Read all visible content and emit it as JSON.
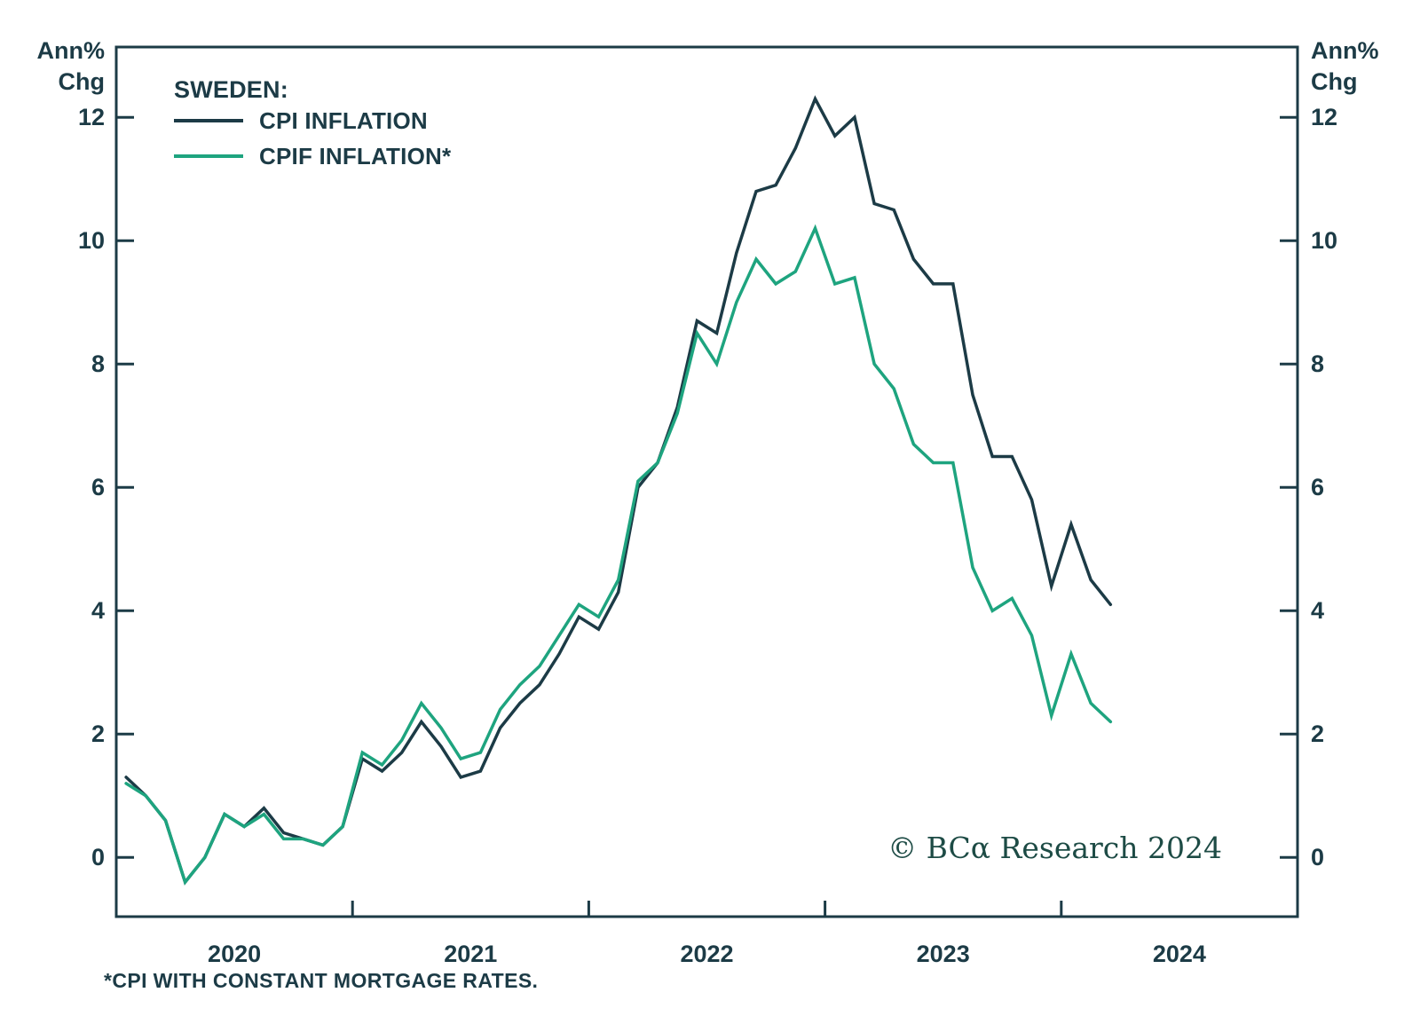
{
  "colors": {
    "text": "#1c3b46",
    "frame": "#1c3b46",
    "cpi_line": "#1c3b46",
    "cpif_line": "#1ea47f",
    "copyright": "#1d4b45",
    "background": "#ffffff"
  },
  "chart_data": {
    "type": "line",
    "title": "SWEDEN:",
    "y_axis_title_line1": "Ann%",
    "y_axis_title_line2": "Chg",
    "y_ticks": [
      0,
      2,
      4,
      6,
      8,
      10,
      12
    ],
    "ylim": [
      -0.96,
      13.14
    ],
    "grid": false,
    "legend_position": "top-left",
    "x_year_labels": [
      "2020",
      "2021",
      "2022",
      "2023",
      "2024"
    ],
    "x_total_months": 60,
    "x": [
      "2020-01",
      "2020-02",
      "2020-03",
      "2020-04",
      "2020-05",
      "2020-06",
      "2020-07",
      "2020-08",
      "2020-09",
      "2020-10",
      "2020-11",
      "2020-12",
      "2021-01",
      "2021-02",
      "2021-03",
      "2021-04",
      "2021-05",
      "2021-06",
      "2021-07",
      "2021-08",
      "2021-09",
      "2021-10",
      "2021-11",
      "2021-12",
      "2022-01",
      "2022-02",
      "2022-03",
      "2022-04",
      "2022-05",
      "2022-06",
      "2022-07",
      "2022-08",
      "2022-09",
      "2022-10",
      "2022-11",
      "2022-12",
      "2023-01",
      "2023-02",
      "2023-03",
      "2023-04",
      "2023-05",
      "2023-06",
      "2023-07",
      "2023-08",
      "2023-09",
      "2023-10",
      "2023-11",
      "2023-12",
      "2024-01",
      "2024-02",
      "2024-03"
    ],
    "series": [
      {
        "name": "CPI INFLATION",
        "color": "#1c3b46",
        "values": [
          1.3,
          1.0,
          0.6,
          -0.4,
          0.0,
          0.7,
          0.5,
          0.8,
          0.4,
          0.3,
          0.2,
          0.5,
          1.6,
          1.4,
          1.7,
          2.2,
          1.8,
          1.3,
          1.4,
          2.1,
          2.5,
          2.8,
          3.3,
          3.9,
          3.7,
          4.3,
          6.0,
          6.4,
          7.3,
          8.7,
          8.5,
          9.8,
          10.8,
          10.9,
          11.5,
          12.3,
          11.7,
          12.0,
          10.6,
          10.5,
          9.7,
          9.3,
          9.3,
          7.5,
          6.5,
          6.5,
          5.8,
          4.4,
          5.4,
          4.5,
          4.1
        ]
      },
      {
        "name": "CPIF INFLATION*",
        "color": "#1ea47f",
        "values": [
          1.2,
          1.0,
          0.6,
          -0.4,
          0.0,
          0.7,
          0.5,
          0.7,
          0.3,
          0.3,
          0.2,
          0.5,
          1.7,
          1.5,
          1.9,
          2.5,
          2.1,
          1.6,
          1.7,
          2.4,
          2.8,
          3.1,
          3.6,
          4.1,
          3.9,
          4.5,
          6.1,
          6.4,
          7.2,
          8.5,
          8.0,
          9.0,
          9.7,
          9.3,
          9.5,
          10.2,
          9.3,
          9.4,
          8.0,
          7.6,
          6.7,
          6.4,
          6.4,
          4.7,
          4.0,
          4.2,
          3.6,
          2.3,
          3.3,
          2.5,
          2.2
        ]
      }
    ],
    "footnote": "*CPI WITH CONSTANT MORTGAGE RATES.",
    "copyright": "© BCα Research 2024"
  }
}
